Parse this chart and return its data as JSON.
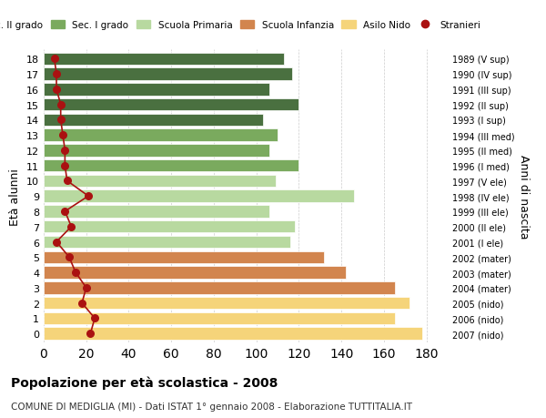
{
  "ages": [
    18,
    17,
    16,
    15,
    14,
    13,
    12,
    11,
    10,
    9,
    8,
    7,
    6,
    5,
    4,
    3,
    2,
    1,
    0
  ],
  "bar_values": [
    113,
    117,
    106,
    120,
    103,
    110,
    106,
    120,
    109,
    146,
    106,
    118,
    116,
    132,
    142,
    165,
    172,
    165,
    178
  ],
  "stranieri": [
    5,
    6,
    6,
    8,
    8,
    9,
    10,
    10,
    11,
    21,
    10,
    13,
    6,
    12,
    15,
    20,
    18,
    24,
    22
  ],
  "right_labels": [
    "1989 (V sup)",
    "1990 (IV sup)",
    "1991 (III sup)",
    "1992 (II sup)",
    "1993 (I sup)",
    "1994 (III med)",
    "1995 (II med)",
    "1996 (I med)",
    "1997 (V ele)",
    "1998 (IV ele)",
    "1999 (III ele)",
    "2000 (II ele)",
    "2001 (I ele)",
    "2002 (mater)",
    "2003 (mater)",
    "2004 (mater)",
    "2005 (nido)",
    "2006 (nido)",
    "2007 (nido)"
  ],
  "bar_colors": [
    "#4a7040",
    "#4a7040",
    "#4a7040",
    "#4a7040",
    "#4a7040",
    "#7aaa5e",
    "#7aaa5e",
    "#7aaa5e",
    "#b8d9a0",
    "#b8d9a0",
    "#b8d9a0",
    "#b8d9a0",
    "#b8d9a0",
    "#d2854e",
    "#d2854e",
    "#d2854e",
    "#f5d47a",
    "#f5d47a",
    "#f5d47a"
  ],
  "legend_labels": [
    "Sec. II grado",
    "Sec. I grado",
    "Scuola Primaria",
    "Scuola Infanzia",
    "Asilo Nido",
    "Stranieri"
  ],
  "legend_colors": [
    "#4a7040",
    "#7aaa5e",
    "#b8d9a0",
    "#d2854e",
    "#f5d47a",
    "#aa1111"
  ],
  "title": "Popolazione per età scolastica - 2008",
  "subtitle": "COMUNE DI MEDIGLIA (MI) - Dati ISTAT 1° gennaio 2008 - Elaborazione TUTTITALIA.IT",
  "xlabel": "",
  "ylabel": "Età alunni",
  "right_ylabel": "Anni di nascita",
  "xlim": [
    0,
    190
  ],
  "xticks": [
    0,
    20,
    40,
    60,
    80,
    100,
    120,
    140,
    160,
    180
  ],
  "background_color": "#ffffff",
  "bar_height": 0.8,
  "stranieri_color": "#aa1111",
  "stranieri_line_color": "#aa1111"
}
